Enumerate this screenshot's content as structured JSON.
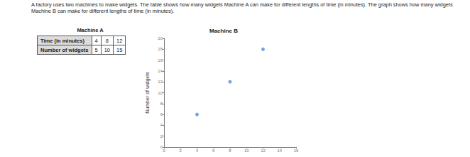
{
  "text": "A factory uses two machines to make widgets. The table shows how many widgets Machine A can make for different lengths of time (in minutes). The graph shows how many widgets Machine B can make for different lengths of time (in minutes).",
  "machine_a": {
    "title": "Machine A",
    "table": {
      "rows": [
        [
          "Time (in minutes)",
          4,
          8,
          12
        ],
        [
          "Number of widgets",
          5,
          10,
          15
        ]
      ]
    }
  },
  "chart_data": {
    "type": "scatter",
    "title": "Machine B",
    "y_label": "Number of widgets",
    "x": [
      4,
      8,
      12
    ],
    "values": [
      6,
      12,
      18
    ],
    "color": "#4a90d9",
    "xlim": [
      0,
      16
    ],
    "xticks": [
      0,
      2,
      4,
      6,
      8,
      10,
      12,
      14,
      16
    ],
    "ylim": [
      0,
      20
    ],
    "yticks": [
      0,
      2,
      4,
      6,
      8,
      10,
      12,
      14,
      16,
      18,
      20
    ],
    "grid": false,
    "marker": "circle"
  }
}
